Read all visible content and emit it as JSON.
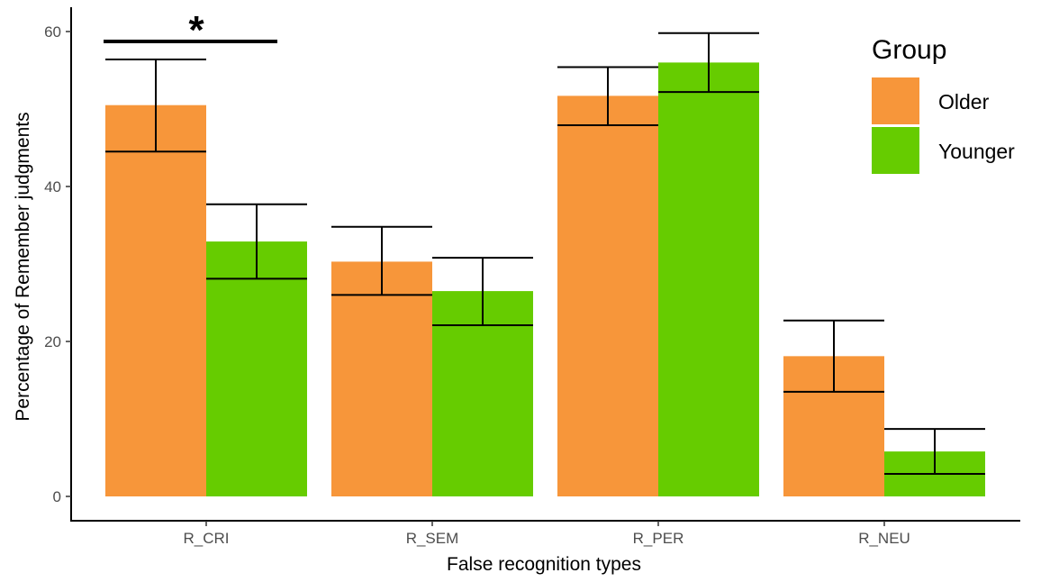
{
  "chart_data": {
    "type": "bar",
    "xlabel": "False recognition types",
    "ylabel": "Percentage of Remember judgments",
    "categories": [
      "R_CRI",
      "R_SEM",
      "R_PER",
      "R_NEU"
    ],
    "ylim": [
      0,
      62
    ],
    "yticks": [
      0,
      20,
      40,
      60
    ],
    "y_tick_labels": [
      "0",
      "20",
      "40",
      "60"
    ],
    "grid": false,
    "series": [
      {
        "name": "Older",
        "color": "#F7963A",
        "values": [
          50.5,
          30.3,
          51.7,
          18.1
        ],
        "error_low": [
          44.5,
          26.0,
          47.9,
          13.5
        ],
        "error_high": [
          56.4,
          34.8,
          55.4,
          22.7
        ]
      },
      {
        "name": "Younger",
        "color": "#66CC00",
        "values": [
          32.9,
          26.5,
          56.0,
          5.8
        ],
        "error_low": [
          28.1,
          22.1,
          52.2,
          2.9
        ],
        "error_high": [
          37.7,
          30.8,
          59.8,
          8.7
        ]
      }
    ],
    "legend": {
      "title": "Group",
      "position": "top-right"
    },
    "annotations": [
      {
        "text": "*",
        "category": "R_CRI",
        "type": "significance-bracket"
      }
    ]
  }
}
